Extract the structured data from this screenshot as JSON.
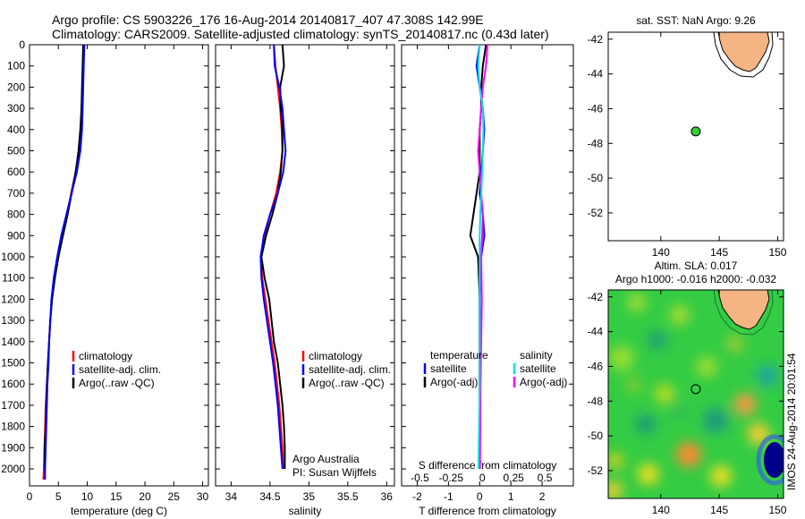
{
  "header": {
    "line1": "Argo profile: CS 5903226_176 16-Aug-2014 20140817_407 47.308S 142.99E",
    "line2": "Climatology: CARS2009. Satellite-adjusted climatology: synTS_20140817.nc (0.43d later)"
  },
  "colors": {
    "climatology": "#ff0000",
    "satellite": "#0000ff",
    "argo": "#000000",
    "sat_diff": "#00e0e0",
    "argo_diff": "#ff00ff",
    "land": "#f5b483",
    "dot": "#33cc33"
  },
  "chart_data": [
    {
      "id": "temperature",
      "type": "line",
      "xlabel": "temperature (deg C)",
      "ylabel": "",
      "xlim": [
        0,
        31
      ],
      "ylim": [
        2080,
        0
      ],
      "xticks": [
        0,
        5,
        10,
        15,
        20,
        25,
        30
      ],
      "yticks": [
        0,
        100,
        200,
        300,
        400,
        500,
        600,
        700,
        800,
        900,
        1000,
        1100,
        1200,
        1300,
        1400,
        1500,
        1600,
        1700,
        1800,
        1900,
        2000
      ],
      "legend": [
        "climatology",
        "satellite-adj. clim.",
        "Argo(..raw -QC)"
      ],
      "series": [
        {
          "name": "climatology",
          "depth": [
            0,
            100,
            200,
            300,
            400,
            500,
            600,
            700,
            800,
            900,
            1000,
            1100,
            1200,
            1300,
            1400,
            1500,
            1600,
            1700,
            1800,
            1900,
            2000,
            2050
          ],
          "values": [
            9.3,
            9.3,
            9.2,
            9.1,
            8.9,
            8.6,
            8.0,
            7.2,
            6.5,
            5.7,
            5.0,
            4.3,
            3.9,
            3.6,
            3.4,
            3.2,
            3.0,
            2.8,
            2.7,
            2.6,
            2.5,
            2.4
          ]
        },
        {
          "name": "satellite-adj. clim.",
          "depth": [
            0,
            100,
            200,
            300,
            400,
            500,
            600,
            700,
            800,
            900,
            1000,
            1100,
            1200,
            1300,
            1400,
            1500,
            1600,
            1700,
            1800,
            1900,
            2000,
            2050
          ],
          "values": [
            9.5,
            9.4,
            9.3,
            9.2,
            9.1,
            8.8,
            8.2,
            7.3,
            6.4,
            5.5,
            4.8,
            4.2,
            3.8,
            3.6,
            3.4,
            3.3,
            3.1,
            3.0,
            2.9,
            2.8,
            2.7,
            2.7
          ]
        },
        {
          "name": "Argo(..raw -QC)",
          "depth": [
            0,
            100,
            200,
            300,
            400,
            500,
            600,
            700,
            800,
            900,
            1000,
            1100,
            1200,
            1300,
            1400,
            1500,
            1600,
            1700,
            1800,
            1900,
            2000
          ],
          "values": [
            9.3,
            9.2,
            9.1,
            9.0,
            8.8,
            8.5,
            8.0,
            7.3,
            6.6,
            5.8,
            5.0,
            4.4,
            3.9,
            3.6,
            3.4,
            3.2,
            3.0,
            2.9,
            2.8,
            2.6,
            2.6
          ]
        }
      ]
    },
    {
      "id": "salinity",
      "type": "line",
      "xlabel": "salinity",
      "xlim": [
        33.8,
        36.1
      ],
      "ylim": [
        2080,
        0
      ],
      "xticks": [
        34,
        34.5,
        35,
        35.5,
        36
      ],
      "legend": [
        "climatology",
        "satellite-adj. clim.",
        "Argo(..raw -QC)"
      ],
      "annotation": [
        "Argo Australia",
        "PI: Susan Wijffels"
      ],
      "series": [
        {
          "name": "climatology",
          "depth": [
            0,
            100,
            200,
            300,
            400,
            500,
            600,
            700,
            800,
            900,
            1000,
            1100,
            1200,
            1300,
            1400,
            1500,
            1600,
            1700,
            1800,
            1900,
            2000
          ],
          "values": [
            34.55,
            34.57,
            34.6,
            34.63,
            34.65,
            34.66,
            34.63,
            34.58,
            34.5,
            34.43,
            34.38,
            34.4,
            34.44,
            34.48,
            34.52,
            34.56,
            34.59,
            34.62,
            34.64,
            34.66,
            34.67
          ]
        },
        {
          "name": "satellite-adj. clim.",
          "depth": [
            0,
            100,
            200,
            300,
            400,
            500,
            600,
            700,
            800,
            900,
            1000,
            1100,
            1200,
            1300,
            1400,
            1500,
            1600,
            1700,
            1800,
            1900,
            2000
          ],
          "values": [
            34.55,
            34.56,
            34.62,
            34.66,
            34.68,
            34.7,
            34.67,
            34.6,
            34.5,
            34.42,
            34.38,
            34.39,
            34.42,
            34.46,
            34.5,
            34.54,
            34.57,
            34.6,
            34.62,
            34.64,
            34.66
          ]
        },
        {
          "name": "Argo(..raw -QC)",
          "depth": [
            0,
            100,
            200,
            300,
            400,
            500,
            600,
            700,
            800,
            900,
            1000,
            1100,
            1200,
            1300,
            1400,
            1500,
            1600,
            1700,
            1800,
            1900,
            2000
          ],
          "values": [
            34.66,
            34.68,
            34.63,
            34.64,
            34.66,
            34.66,
            34.64,
            34.6,
            34.53,
            34.45,
            34.39,
            34.43,
            34.49,
            34.52,
            34.55,
            34.6,
            34.63,
            34.66,
            34.68,
            34.69,
            34.69
          ]
        }
      ]
    },
    {
      "id": "differences",
      "type": "line",
      "xlabel": "T difference from climatology",
      "xlabel_top": "S difference from climatology",
      "xlim": [
        -2.5,
        3.0
      ],
      "ylim": [
        2080,
        0
      ],
      "xticks": [
        -2,
        -1,
        0,
        1,
        2
      ],
      "xticks_top": [
        "-0.5",
        "-0.25",
        "0",
        "0.25",
        "0.5"
      ],
      "legend_left_title": "temperature",
      "legend_right_title": "salinity",
      "legend_left": [
        "satellite",
        "Argo(-adj)"
      ],
      "legend_right": [
        "satellite",
        "Argo(-adj)"
      ],
      "series": [
        {
          "name": "T satellite",
          "depth": [
            0,
            100,
            200,
            300,
            400,
            500,
            600,
            700,
            800,
            900,
            1000,
            1200,
            1400,
            1600,
            1800,
            2000
          ],
          "values": [
            0.0,
            -0.1,
            0.0,
            0.1,
            0.15,
            0.1,
            0.05,
            0.0,
            0.1,
            0.15,
            0.05,
            0.0,
            0.0,
            0.0,
            0.0,
            0.0
          ]
        },
        {
          "name": "T Argo(-adj)",
          "depth": [
            0,
            100,
            200,
            300,
            400,
            500,
            600,
            700,
            800,
            900,
            1000,
            1200,
            1400,
            1600,
            1800,
            2000
          ],
          "values": [
            0.2,
            0.1,
            0.05,
            0.05,
            0.0,
            0.0,
            0.0,
            -0.1,
            -0.2,
            -0.3,
            -0.05,
            0.0,
            0.0,
            0.0,
            0.0,
            0.0
          ]
        },
        {
          "name": "S satellite",
          "depth": [
            0,
            100,
            200,
            300,
            400,
            500,
            600,
            700,
            800,
            900,
            1000,
            1200,
            1400,
            1600,
            1800,
            2000
          ],
          "values": [
            0.0,
            -0.05,
            0.0,
            0.1,
            0.12,
            0.1,
            0.08,
            0.05,
            0.02,
            0.0,
            0.0,
            0.0,
            0.0,
            0.0,
            -0.02,
            -0.04
          ]
        },
        {
          "name": "S Argo(-adj)",
          "depth": [
            0,
            100,
            200,
            300,
            400,
            500,
            600,
            700,
            800,
            900,
            1000,
            1200,
            1400,
            1600,
            1800,
            2000
          ],
          "values": [
            0.25,
            0.2,
            0.1,
            0.05,
            0.0,
            -0.05,
            0.0,
            0.05,
            0.1,
            0.08,
            0.05,
            0.07,
            0.05,
            0.03,
            0.02,
            0.01
          ]
        }
      ]
    },
    {
      "id": "sst_map",
      "type": "scatter",
      "title": "sat. SST: NaN Argo: 9.26",
      "xlim": [
        135.5,
        150.5
      ],
      "ylim": [
        -53.6,
        -41.6
      ],
      "xticks": [
        140,
        145,
        150
      ],
      "yticks": [
        -42,
        -44,
        -46,
        -48,
        -50,
        -52
      ],
      "point": {
        "lon": 142.99,
        "lat": -47.308
      }
    },
    {
      "id": "sla_map",
      "type": "heatmap",
      "title_line1": "Altim. SLA: 0.017",
      "title_line2": "Argo h1000: -0.016 h2000: -0.032",
      "xlim": [
        135.5,
        150.5
      ],
      "ylim": [
        -53.6,
        -41.6
      ],
      "xticks": [
        140,
        145,
        150
      ],
      "yticks": [
        -42,
        -44,
        -46,
        -48,
        -50,
        -52
      ],
      "point": {
        "lon": 142.99,
        "lat": -47.308
      }
    }
  ],
  "footer": {
    "stamp": "IMOS 24-Aug-2014 20:01:54"
  }
}
